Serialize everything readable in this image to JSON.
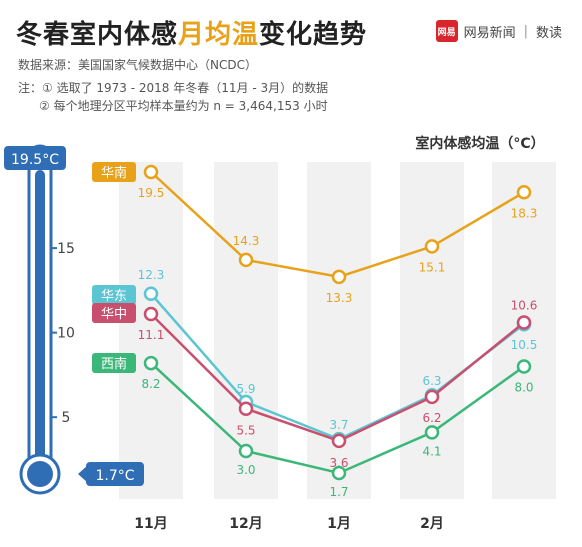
{
  "header": {
    "title_pre": "冬春室内体感",
    "title_hl": "月均温",
    "title_post": "变化趋势",
    "brand_logo": "网易",
    "brand_name": "网易新闻",
    "brand_sep": "|",
    "brand_tag": "数读",
    "source": "数据来源：美国国家气候数据中心（NCDC）",
    "note1": "注：① 选取了 1973 - 2018 年冬春（11月 - 3月）的数据",
    "note2": "② 每个地理分区平均样本量约为 n = 3,464,153 小时"
  },
  "chart_data": {
    "type": "line",
    "title": "室内体感均温（°C）",
    "categories": [
      "11月",
      "12月",
      "1月",
      "2月",
      "3月"
    ],
    "category_labels_shown": [
      "11月",
      "12月",
      "1月",
      "2月"
    ],
    "ylim": [
      1.7,
      19.5
    ],
    "yticks": [
      5,
      10,
      15
    ],
    "thermometer_top_label": "19.5°C",
    "thermometer_bottom_label": "1.7°C",
    "grid": false,
    "series": [
      {
        "name": "华南",
        "color": "#e8a21a",
        "values": [
          19.5,
          14.3,
          13.3,
          15.1,
          18.3
        ],
        "labels": [
          "19.5",
          "14.3",
          "13.3",
          "15.1",
          "18.3"
        ]
      },
      {
        "name": "华东",
        "color": "#5cc5d4",
        "values": [
          12.3,
          5.9,
          3.7,
          6.3,
          10.5
        ],
        "labels": [
          "12.3",
          "5.9",
          "3.7",
          "6.3",
          "10.5"
        ]
      },
      {
        "name": "华中",
        "color": "#c8506e",
        "values": [
          11.1,
          5.5,
          3.6,
          6.2,
          10.6
        ],
        "labels": [
          "11.1",
          "5.5",
          "3.6",
          "6.2",
          "10.6"
        ]
      },
      {
        "name": "西南",
        "color": "#3bb77a",
        "values": [
          8.2,
          3.0,
          1.7,
          4.1,
          8.0
        ],
        "labels": [
          "8.2",
          "3.0",
          "1.7",
          "4.1",
          "8.0"
        ]
      }
    ]
  },
  "colors": {
    "thermometer": "#2f6db4",
    "column_bg": "#f1f1f1",
    "axis_text": "#444444",
    "title_highlight": "#e8a21a"
  }
}
